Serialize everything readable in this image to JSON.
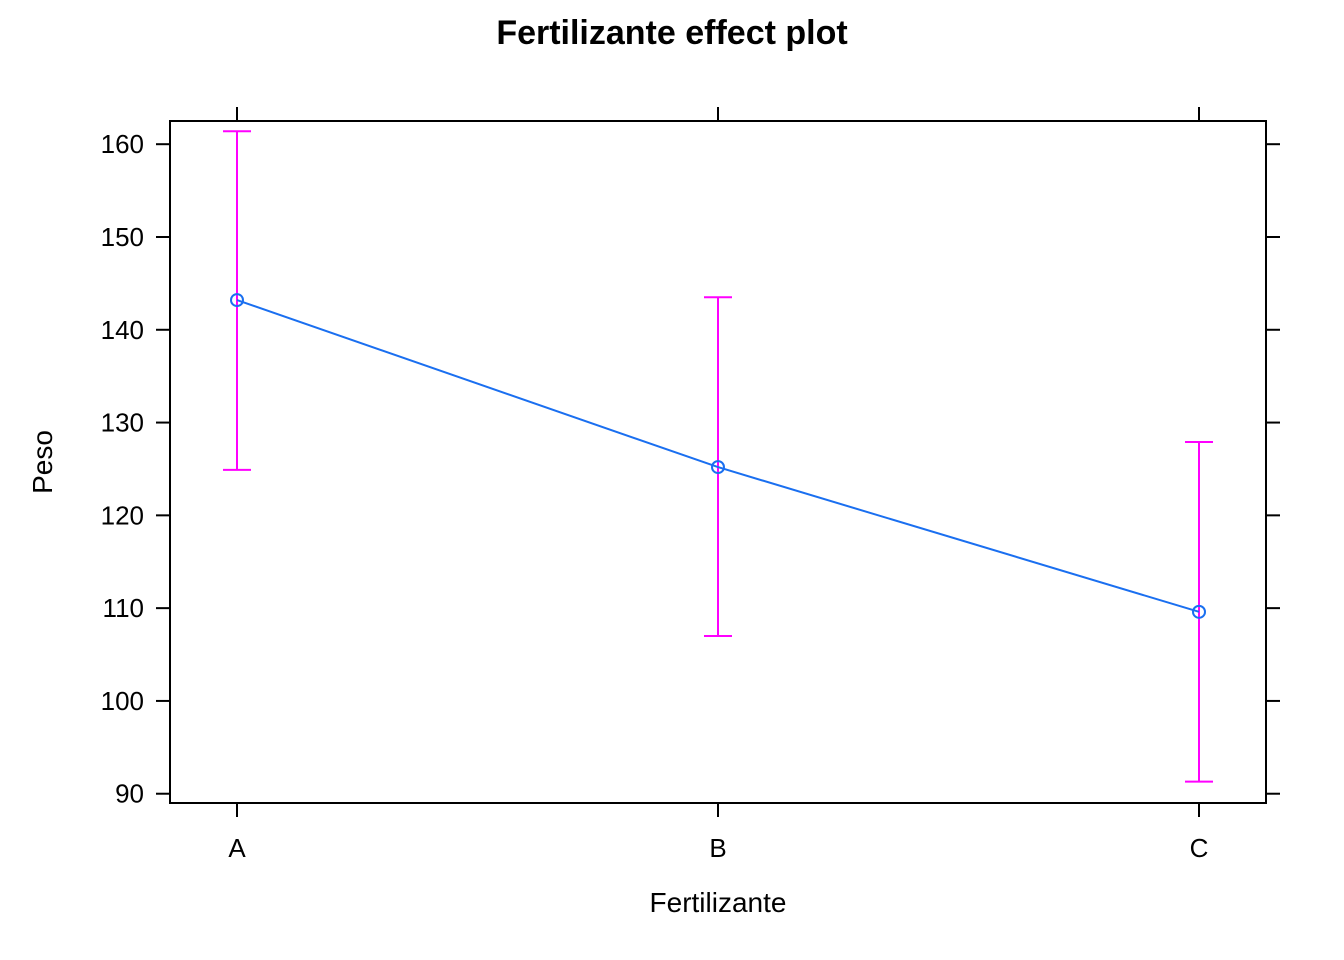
{
  "chart_data": {
    "type": "line",
    "title": "Fertilizante effect plot",
    "xlabel": "Fertilizante",
    "ylabel": "Peso",
    "categories": [
      "A",
      "B",
      "C"
    ],
    "series": [
      {
        "values": [
          143.2,
          125.2,
          109.6
        ],
        "lower": [
          124.9,
          107.0,
          91.3
        ],
        "upper": [
          161.4,
          143.5,
          127.9
        ]
      }
    ],
    "y_ticks": [
      90,
      100,
      110,
      120,
      130,
      140,
      150,
      160
    ],
    "ylim": [
      89,
      162.5
    ],
    "grid": false,
    "colors": {
      "line": "#1a6ff0",
      "error_bars": "#ff00ff",
      "axis": "#000000"
    }
  }
}
